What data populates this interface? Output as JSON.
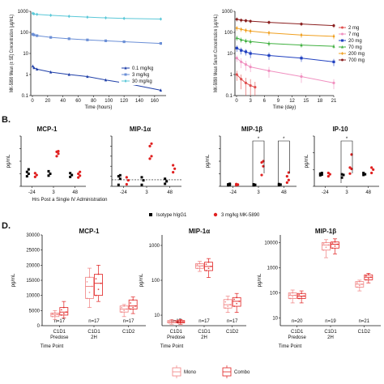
{
  "panels": [
    "A.",
    "B.",
    "D."
  ],
  "chart_data": [
    {
      "id": "A-left",
      "type": "line",
      "xscale": "linear",
      "yscale": "log",
      "xlabel": "Time (hours)",
      "ylabel": "MK-5890 Mean (± SE) Concentration (µg/mL)",
      "xlim": [
        0,
        175
      ],
      "ylim": [
        0.1,
        1000
      ],
      "xticks": [
        "0",
        "20",
        "40",
        "60",
        "80",
        "100",
        "120",
        "140",
        "160",
        "180"
      ],
      "xtick_values": [
        0,
        20,
        40,
        60,
        80,
        100,
        120,
        140,
        160,
        180
      ],
      "yticks": [
        "0.1",
        "1",
        "10",
        "100",
        "1000"
      ],
      "ytick_values": [
        0.1,
        1,
        10,
        100,
        1000
      ],
      "legend": "bottom-right",
      "series": [
        {
          "name": "0.1 mg/kg",
          "color": "#1f3fa8",
          "marker": "triangle",
          "points": [
            [
              0.5,
              2.5
            ],
            [
              2,
              2.1
            ],
            [
              6,
              1.8
            ],
            [
              24,
              1.3
            ],
            [
              48,
              1.0
            ],
            [
              72,
              0.8
            ],
            [
              96,
              0.55
            ],
            [
              120,
              0.4
            ],
            [
              168,
              0.18
            ]
          ]
        },
        {
          "name": "3 mg/kg",
          "color": "#6b8fd6",
          "marker": "square",
          "points": [
            [
              0.5,
              82
            ],
            [
              2,
              76
            ],
            [
              6,
              70
            ],
            [
              24,
              58
            ],
            [
              48,
              50
            ],
            [
              72,
              44
            ],
            [
              96,
              40
            ],
            [
              120,
              36
            ],
            [
              168,
              30
            ]
          ]
        },
        {
          "name": "30 mg/kg",
          "color": "#5bc8d8",
          "marker": "diamond",
          "points": [
            [
              0.5,
              800
            ],
            [
              2,
              760
            ],
            [
              6,
              720
            ],
            [
              24,
              650
            ],
            [
              48,
              580
            ],
            [
              72,
              530
            ],
            [
              96,
              490
            ],
            [
              120,
              460
            ],
            [
              168,
              430
            ]
          ]
        }
      ]
    },
    {
      "id": "A-right",
      "type": "line",
      "xscale": "linear",
      "yscale": "log",
      "xlabel": "Time (day)",
      "ylabel": "MK-5890 Mean Serum Concentration (µg/mL)",
      "xlim": [
        0,
        21
      ],
      "ylim": [
        0.1,
        1000
      ],
      "xticks": [
        "0",
        "3",
        "6",
        "9",
        "12",
        "15",
        "18",
        "21"
      ],
      "xtick_values": [
        0,
        3,
        6,
        9,
        12,
        15,
        18,
        21
      ],
      "yticks": [
        "0.1",
        "1",
        "10",
        "100",
        "1000"
      ],
      "ytick_values": [
        0.1,
        1,
        10,
        100,
        1000
      ],
      "legend": "right",
      "series": [
        {
          "name": "2 mg",
          "color": "#e05050",
          "marker": "circle",
          "points": [
            [
              0.05,
              1.0
            ],
            [
              1,
              0.6
            ],
            [
              2,
              0.4
            ],
            [
              3,
              0.3
            ],
            [
              4,
              0.25
            ]
          ],
          "err": [
            0.5,
            0.4,
            0.3,
            0.3,
            0.2
          ]
        },
        {
          "name": "7 mg",
          "color": "#f090c0",
          "marker": "circle",
          "points": [
            [
              0.05,
              6
            ],
            [
              1,
              4
            ],
            [
              2,
              3
            ],
            [
              3,
              2.3
            ],
            [
              7,
              1.5
            ],
            [
              14,
              0.8
            ],
            [
              21,
              0.4
            ]
          ],
          "err": [
            2,
            2,
            1.5,
            1,
            0.8,
            0.4,
            0.2
          ]
        },
        {
          "name": "20 mg",
          "color": "#2040c0",
          "marker": "square",
          "points": [
            [
              0.05,
              18
            ],
            [
              1,
              14
            ],
            [
              2,
              12
            ],
            [
              3,
              10
            ],
            [
              7,
              8
            ],
            [
              14,
              6
            ],
            [
              21,
              4
            ]
          ],
          "err": [
            6,
            5,
            4,
            4,
            3,
            2,
            1.5
          ]
        },
        {
          "name": "70 mg",
          "color": "#40b040",
          "marker": "triangle",
          "points": [
            [
              0.05,
              55
            ],
            [
              1,
              45
            ],
            [
              2,
              40
            ],
            [
              3,
              37
            ],
            [
              7,
              30
            ],
            [
              14,
              25
            ],
            [
              21,
              22
            ]
          ],
          "err": [
            15,
            12,
            10,
            10,
            8,
            6,
            5
          ]
        },
        {
          "name": "200 mg",
          "color": "#f0a020",
          "marker": "diamond",
          "points": [
            [
              0.05,
              160
            ],
            [
              1,
              140
            ],
            [
              2,
              125
            ],
            [
              3,
              115
            ],
            [
              7,
              95
            ],
            [
              14,
              75
            ],
            [
              21,
              65
            ]
          ],
          "err": [
            40,
            35,
            30,
            30,
            25,
            20,
            18
          ]
        },
        {
          "name": "700 mg",
          "color": "#8b2020",
          "marker": "circle",
          "points": [
            [
              0.05,
              420
            ],
            [
              1,
              380
            ],
            [
              2,
              360
            ],
            [
              3,
              340
            ],
            [
              7,
              300
            ],
            [
              14,
              250
            ],
            [
              21,
              210
            ]
          ],
          "err": [
            90,
            80,
            70,
            70,
            60,
            50,
            45
          ]
        }
      ]
    },
    {
      "id": "B",
      "type": "scatter",
      "ylabel": "pg/mL",
      "xlabel": "Hrs Post a Single IV Administration",
      "categories": [
        "-24",
        "3",
        "48"
      ],
      "legend": "bottom-center",
      "legend_entries": [
        {
          "name": "Isotype hIgG1",
          "color": "#000000",
          "marker": "square"
        },
        {
          "name": "3 mg/kg MK-5890",
          "color": "#e02020",
          "marker": "circle"
        }
      ],
      "subplots": [
        {
          "title": "MCP-1",
          "ylim": [
            0,
            800
          ],
          "yticks": [
            "0",
            "200",
            "400",
            "600",
            "800"
          ],
          "groups": [
            {
              "cat": "-24",
              "iso": [
                160,
                200,
                230,
                270
              ],
              "mk": [
                150,
                180,
                210
              ]
            },
            {
              "cat": "3",
              "iso": [
                170,
                200,
                240
              ],
              "mk": [
                480,
                520,
                550,
                560
              ]
            },
            {
              "cat": "48",
              "iso": [
                150,
                180,
                210
              ],
              "mk": [
                140,
                170,
                200,
                230
              ]
            }
          ]
        },
        {
          "title": "MIP-1α",
          "ylim": [
            0,
            100
          ],
          "yticks": [
            "0",
            "20",
            "40",
            "60",
            "80",
            "100"
          ],
          "dashed_y": 13,
          "groups": [
            {
              "cat": "-24",
              "iso": [
                3,
                15,
                20,
                22
              ],
              "mk": [
                4,
                12,
                18
              ]
            },
            {
              "cat": "3",
              "iso": [
                3,
                12,
                18
              ],
              "mk": [
                55,
                60,
                80,
                85
              ]
            },
            {
              "cat": "48",
              "iso": [
                5,
                10,
                15
              ],
              "mk": [
                28,
                35,
                42
              ]
            }
          ]
        },
        {
          "title": "MIP-1β",
          "ylim": [
            0,
            2000
          ],
          "yticks": [
            "0",
            "500",
            "1000",
            "1500",
            "2000"
          ],
          "significance": [
            "*",
            "*"
          ],
          "groups": [
            {
              "cat": "-24",
              "iso": [
                40,
                60,
                80,
                100
              ],
              "mk": [
                50,
                70,
                90
              ]
            },
            {
              "cat": "3",
              "iso": [
                40,
                60,
                80
              ],
              "mk": [
                450,
                800,
                950,
                1000
              ]
            },
            {
              "cat": "48",
              "iso": [
                50,
                70,
                90
              ],
              "mk": [
                150,
                250,
                400,
                550
              ]
            }
          ]
        },
        {
          "title": "IP-10",
          "ylim": [
            0,
            1500
          ],
          "yticks": [
            "0",
            "500",
            "1000",
            "1500"
          ],
          "significance": [
            "*"
          ],
          "groups": [
            {
              "cat": "-24",
              "iso": [
                330,
                350,
                380,
                400
              ],
              "mk": [
                300,
                360,
                400
              ]
            },
            {
              "cat": "3",
              "iso": [
                260,
                340,
                360
              ],
              "mk": [
                380,
                520,
                560,
                950
              ]
            },
            {
              "cat": "48",
              "iso": [
                340,
                360,
                400
              ],
              "mk": [
                400,
                500,
                560
              ]
            }
          ]
        }
      ]
    },
    {
      "id": "D",
      "type": "box",
      "ylabel": "pg/mL",
      "xlabel": "Time Point",
      "categories": [
        "C1D1 Predose",
        "C1D1 2H",
        "C1D2"
      ],
      "legend": "bottom-center",
      "legend_entries": [
        {
          "name": "Mono",
          "color": "#f08080"
        },
        {
          "name": "Combo",
          "color": "#e02020"
        }
      ],
      "subplots": [
        {
          "title": "MCP-1",
          "yscale": "linear",
          "ylim": [
            0,
            30000
          ],
          "yticks": [
            "0",
            "5000",
            "10000",
            "15000",
            "20000",
            "25000",
            "30000"
          ],
          "ytick_values": [
            0,
            5000,
            10000,
            15000,
            20000,
            25000,
            30000
          ],
          "n": [
            "n=17",
            "n=17",
            "n=17"
          ],
          "boxes": [
            {
              "mono": [
                2000,
                3000,
                3700,
                4200,
                5000
              ],
              "combo": [
                2500,
                3500,
                4500,
                6000,
                8000
              ]
            },
            {
              "mono": [
                6000,
                9000,
                13000,
                16000,
                19000
              ],
              "combo": [
                8000,
                10000,
                14000,
                17000,
                20000
              ]
            },
            {
              "mono": [
                3000,
                4500,
                5500,
                6500,
                7000
              ],
              "combo": [
                4000,
                5500,
                6500,
                8500,
                9500
              ]
            }
          ]
        },
        {
          "title": "MIP-1α",
          "yscale": "log",
          "ylim": [
            5,
            2000
          ],
          "yticks": [
            "10",
            "100",
            "1000"
          ],
          "ytick_values": [
            10,
            100,
            1000
          ],
          "n": [
            "n=17",
            "n=17",
            "n=17"
          ],
          "boxes": [
            {
              "mono": [
                5.5,
                6,
                6.5,
                7,
                7.5
              ],
              "combo": [
                5.5,
                6,
                6.5,
                7,
                7.5
              ]
            },
            {
              "mono": [
                180,
                220,
                260,
                300,
                350
              ],
              "combo": [
                120,
                190,
                250,
                330,
                420
              ]
            },
            {
              "mono": [
                12,
                16,
                20,
                28,
                35
              ],
              "combo": [
                12,
                18,
                25,
                32,
                42
              ]
            }
          ]
        },
        {
          "title": "MIP-1β",
          "yscale": "log",
          "ylim": [
            5,
            20000
          ],
          "yticks": [
            "10",
            "100",
            "1000",
            "10000"
          ],
          "ytick_values": [
            10,
            100,
            1000,
            10000
          ],
          "n": [
            "n=20",
            "n=19",
            "n=21"
          ],
          "boxes": [
            {
              "mono": [
                40,
                60,
                80,
                100,
                130
              ],
              "combo": [
                40,
                60,
                75,
                95,
                120
              ]
            },
            {
              "mono": [
                2500,
                5000,
                8000,
                10000,
                13000
              ],
              "combo": [
                3500,
                6000,
                8500,
                10500,
                14000
              ]
            },
            {
              "mono": [
                120,
                170,
                220,
                280,
                320
              ],
              "combo": [
                250,
                330,
                420,
                520,
                600
              ]
            }
          ]
        }
      ]
    }
  ]
}
